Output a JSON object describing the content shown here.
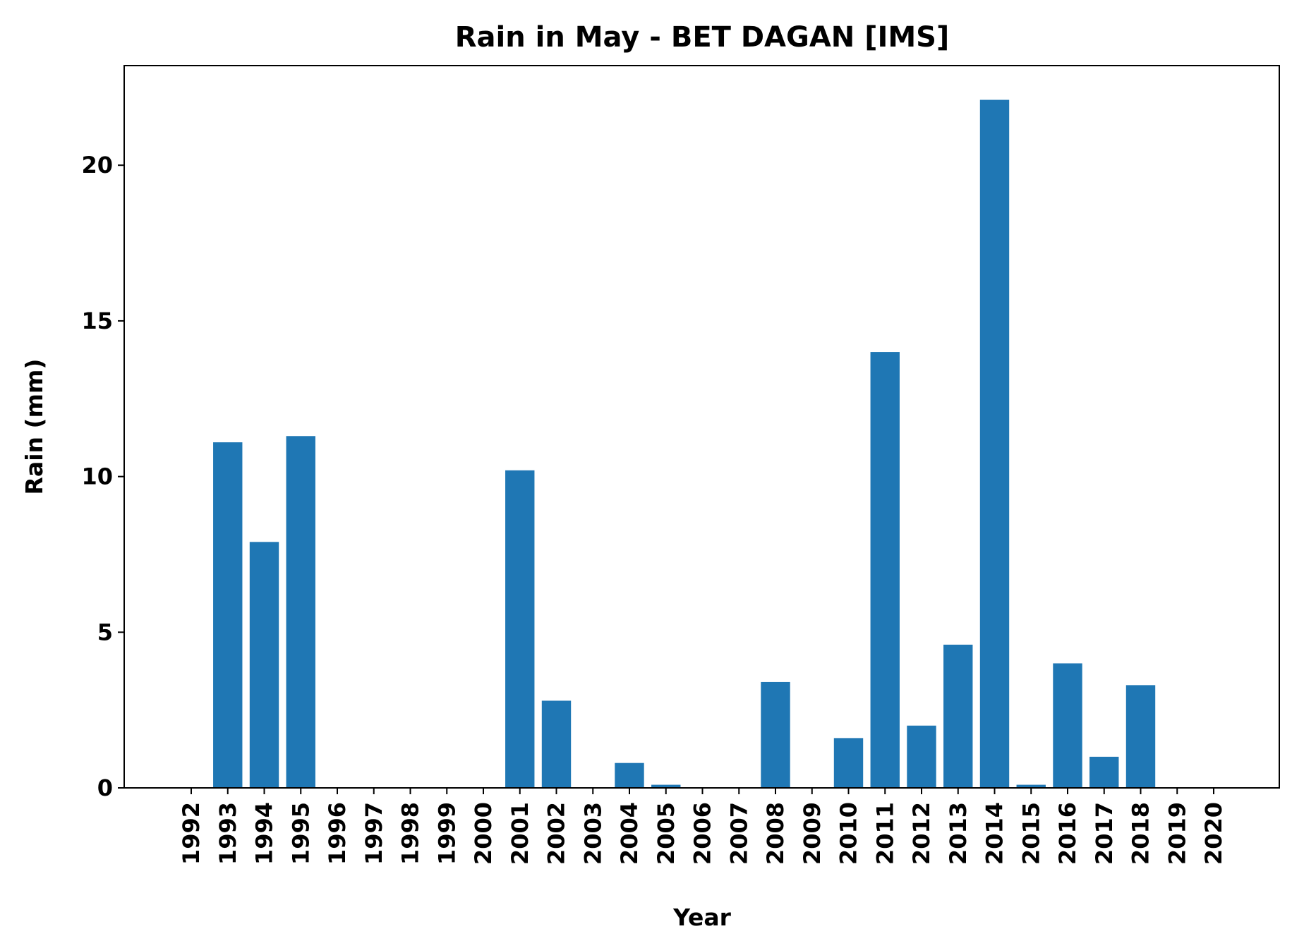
{
  "chart_data": {
    "type": "bar",
    "title": "Rain in May - BET DAGAN [IMS]",
    "xlabel": "Year",
    "ylabel": "Rain (mm)",
    "ylim": [
      0,
      23.2
    ],
    "yticks": [
      "0",
      "5",
      "10",
      "15",
      "20"
    ],
    "grid": false,
    "categories": [
      "1992",
      "1993",
      "1994",
      "1995",
      "1996",
      "1997",
      "1998",
      "1999",
      "2000",
      "2001",
      "2002",
      "2003",
      "2004",
      "2005",
      "2006",
      "2007",
      "2008",
      "2009",
      "2010",
      "2011",
      "2012",
      "2013",
      "2014",
      "2015",
      "2016",
      "2017",
      "2018",
      "2019",
      "2020"
    ],
    "values": [
      0,
      11.1,
      7.9,
      11.3,
      0,
      0,
      0,
      0,
      0,
      10.2,
      2.8,
      0,
      0.8,
      0.1,
      0,
      0,
      3.4,
      0,
      1.6,
      14.0,
      2.0,
      4.6,
      22.1,
      0.1,
      4.0,
      1.0,
      3.3,
      0,
      0
    ],
    "bar_color": "#1f77b4"
  }
}
